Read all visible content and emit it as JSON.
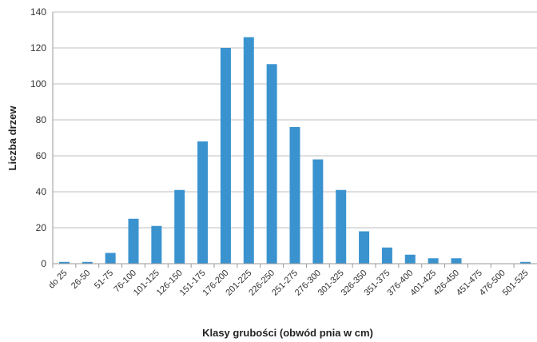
{
  "chart_data": {
    "type": "bar",
    "xlabel": "Klasy grubości (obwód pnia w cm)",
    "ylabel": "Liczba drzew",
    "ylim": [
      0,
      140
    ],
    "yticks": [
      0,
      20,
      40,
      60,
      80,
      100,
      120,
      140
    ],
    "grid": true,
    "legend": "none",
    "bar_color": "#3a93cf",
    "grid_color": "#bfbfbf",
    "categories": [
      "do 25",
      "26-50",
      "51-75",
      "76-100",
      "101-125",
      "126-150",
      "151-175",
      "176-200",
      "201-225",
      "226-250",
      "251-275",
      "276-300",
      "301-325",
      "326-350",
      "351-375",
      "376-400",
      "401-425",
      "426-450",
      "451-475",
      "476-500",
      "501-525"
    ],
    "values": [
      1,
      1,
      6,
      25,
      21,
      41,
      68,
      120,
      126,
      111,
      76,
      58,
      41,
      18,
      9,
      5,
      3,
      3,
      0,
      0,
      1
    ]
  }
}
